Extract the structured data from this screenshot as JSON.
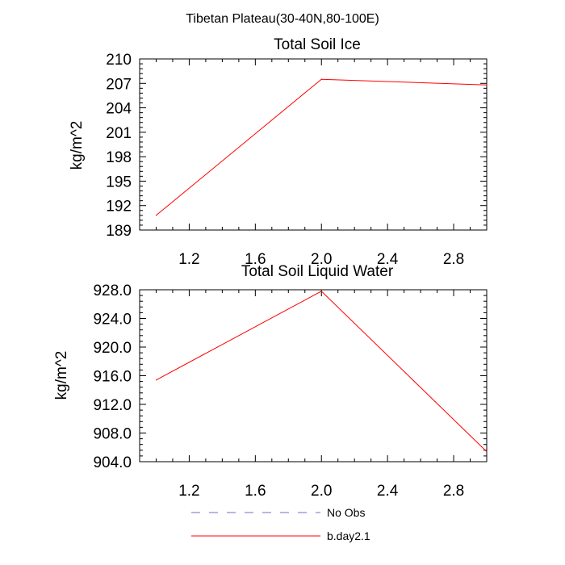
{
  "figure": {
    "title": "Tibetan Plateau(30-40N,80-100E)"
  },
  "colors": {
    "series": "#ff0000",
    "no_obs": "#6f6fc8",
    "axis": "#000000"
  },
  "chart_data": [
    {
      "type": "line",
      "title": "Total Soil Ice",
      "xlabel": "",
      "ylabel": "kg/m^2",
      "xlim": [
        0.9,
        3.0
      ],
      "ylim": [
        189,
        210
      ],
      "xticks": [
        1.2,
        1.6,
        2.0,
        2.4,
        2.8
      ],
      "xtick_labels": [
        "1.2",
        "1.6",
        "2.0",
        "2.4",
        "2.8"
      ],
      "yticks": [
        189,
        192,
        195,
        198,
        201,
        204,
        207,
        210
      ],
      "ytick_labels": [
        "189",
        "192",
        "195",
        "198",
        "201",
        "204",
        "207",
        "210"
      ],
      "series": [
        {
          "name": "b.day2.1",
          "x": [
            1.0,
            2.0,
            3.0
          ],
          "values": [
            190.8,
            207.5,
            206.8
          ]
        }
      ]
    },
    {
      "type": "line",
      "title": "Total Soil Liquid Water",
      "xlabel": "",
      "ylabel": "kg/m^2",
      "xlim": [
        0.9,
        3.0
      ],
      "ylim": [
        904.0,
        928.0
      ],
      "xticks": [
        1.2,
        1.6,
        2.0,
        2.4,
        2.8
      ],
      "xtick_labels": [
        "1.2",
        "1.6",
        "2.0",
        "2.4",
        "2.8"
      ],
      "yticks": [
        904,
        908,
        912,
        916,
        920,
        924,
        928
      ],
      "ytick_labels": [
        "904.0",
        "908.0",
        "912.0",
        "916.0",
        "920.0",
        "924.0",
        "928.0"
      ],
      "series": [
        {
          "name": "b.day2.1",
          "x": [
            1.0,
            2.0,
            3.0
          ],
          "values": [
            915.4,
            927.8,
            905.4
          ]
        }
      ]
    }
  ],
  "legend": {
    "placement": "bottom-center",
    "entries": [
      {
        "label": "No Obs",
        "style": "dashed"
      },
      {
        "label": "b.day2.1",
        "style": "solid"
      }
    ]
  }
}
